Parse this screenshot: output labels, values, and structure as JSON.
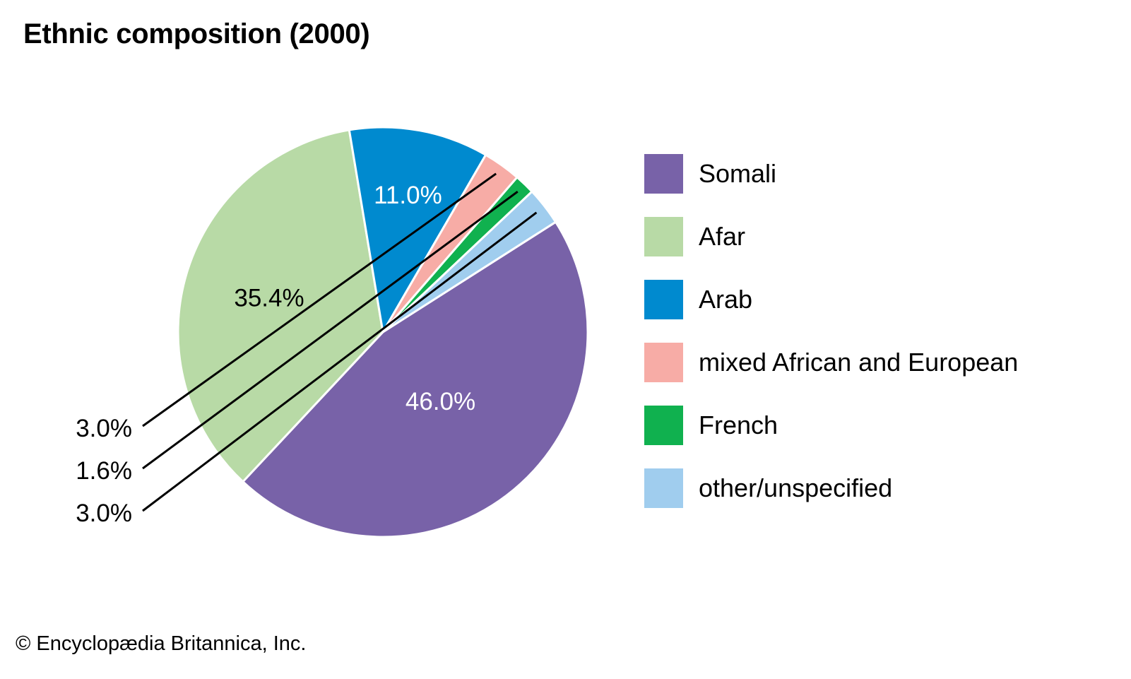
{
  "chart_data": {
    "type": "pie",
    "title": "Ethnic composition (2000)",
    "categories": [
      "Somali",
      "Afar",
      "Arab",
      "mixed African and European",
      "French",
      "other/unspecified"
    ],
    "values": [
      46.0,
      35.4,
      11.0,
      3.0,
      1.6,
      3.0
    ],
    "value_labels": [
      "46.0%",
      "35.4%",
      "11.0%",
      "3.0%",
      "1.6%",
      "3.0%"
    ],
    "colors": [
      "#7862a8",
      "#b8daa6",
      "#008acf",
      "#f7aca6",
      "#10b14f",
      "#a0cdee"
    ],
    "label_text_colors": [
      "#ffffff",
      "#000000",
      "#ffffff",
      "#000000",
      "#000000",
      "#000000"
    ],
    "legend_position": "right",
    "grid": false
  },
  "copyright": "© Encyclopædia Britannica, Inc."
}
